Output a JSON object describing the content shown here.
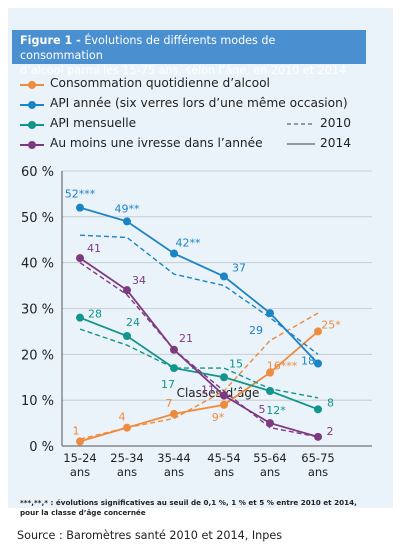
{
  "figure": {
    "title_prefix": "Figure 1 -",
    "title_rest": " Évolutions de différents modes de consommation",
    "title_line2": "d’alcool parmi les 15-75 ans, selon l’âge, en 2010 et 2014"
  },
  "legend": {
    "style_2010": "2010",
    "style_2014": "2014"
  },
  "footnote_line1": "***,**,* : évolutions significatives au seuil de 0,1 %, 1 % et 5 % entre 2010 et 2014,",
  "footnote_line2": "pour la classe d’âge concernée",
  "source": "Source : Baromètres santé 2010 et 2014, Inpes",
  "chart_data": {
    "type": "line",
    "xlabel": "Classes d’âge",
    "ylabel": "",
    "ylim": [
      0,
      60
    ],
    "yticks": [
      0,
      10,
      20,
      30,
      40,
      50,
      60
    ],
    "ytick_labels": [
      "0 %",
      "10 %",
      "20 %",
      "30 %",
      "40 %",
      "50 %",
      "60 %"
    ],
    "categories": [
      [
        "15-24",
        "ans"
      ],
      [
        "25-34",
        "ans"
      ],
      [
        "35-44",
        "ans"
      ],
      [
        "45-54",
        "ans"
      ],
      [
        "55-64",
        "ans"
      ],
      [
        "65-75",
        "ans"
      ]
    ],
    "grid": true,
    "series": [
      {
        "name": "Consommation quotidienne d’alcool",
        "color": "#f08a3c",
        "values_2014": [
          1,
          4,
          7,
          9,
          16,
          25
        ],
        "values_2010": [
          1.5,
          4,
          6,
          12,
          23,
          29
        ],
        "labels": [
          "1",
          "4",
          "7",
          "9*",
          "16***",
          "25*"
        ]
      },
      {
        "name": "API année (six verres lors d’une même occasion)",
        "color": "#1c83c4",
        "values_2014": [
          52,
          49,
          42,
          37,
          29,
          18
        ],
        "values_2010": [
          46,
          45.5,
          37.5,
          35,
          28,
          20
        ],
        "labels": [
          "52***",
          "49**",
          "42**",
          "37",
          "29",
          "18"
        ]
      },
      {
        "name": "API mensuelle",
        "color": "#12958a",
        "values_2014": [
          28,
          24,
          17,
          15,
          12,
          8
        ],
        "values_2010": [
          25.5,
          22,
          17,
          17,
          12.5,
          10.5
        ],
        "labels": [
          "28",
          "24",
          "17",
          "15",
          "12*",
          "8"
        ]
      },
      {
        "name": "Au moins une ivresse dans l’année",
        "color": "#7d3a7f",
        "values_2014": [
          41,
          34,
          21,
          11,
          5,
          2
        ],
        "values_2010": [
          40,
          33,
          21,
          12,
          4,
          2
        ],
        "labels": [
          "41",
          "34",
          "21",
          "11",
          "5",
          "2"
        ]
      }
    ]
  }
}
